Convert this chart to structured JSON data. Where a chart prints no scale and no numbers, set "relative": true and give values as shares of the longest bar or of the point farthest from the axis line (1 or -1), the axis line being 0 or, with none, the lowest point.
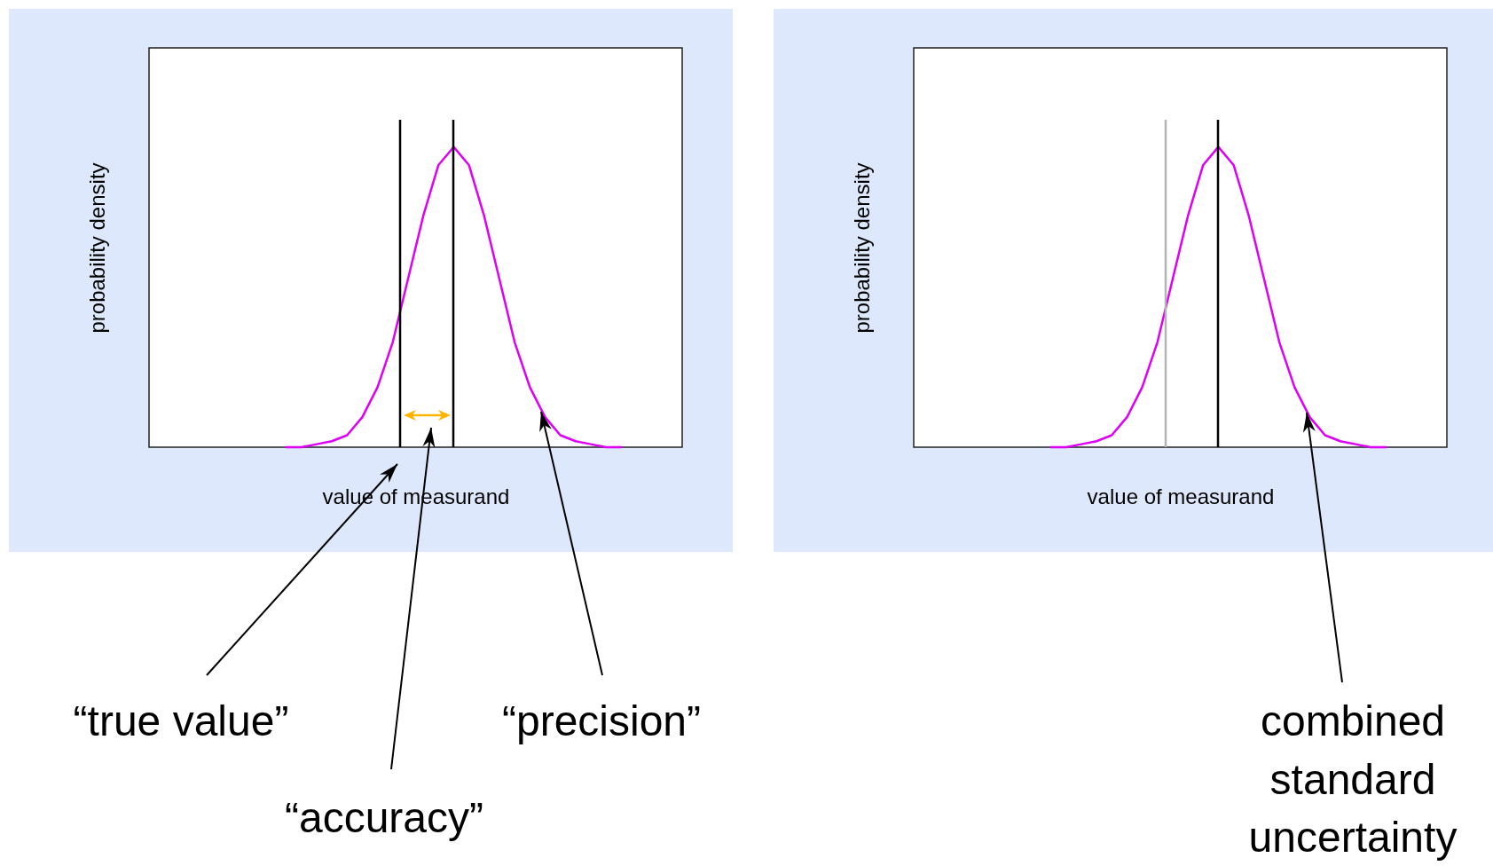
{
  "chart_data": [
    {
      "type": "line",
      "relative": true,
      "xlabel": "value of measurand",
      "ylabel": "probability density",
      "categories": [
        null,
        null,
        null,
        null,
        null,
        null,
        null,
        null,
        null,
        null,
        null,
        null,
        null,
        null,
        null,
        null,
        null,
        null,
        null,
        null,
        null,
        null,
        null,
        null,
        null,
        null,
        null,
        null,
        null,
        null,
        null,
        null,
        null,
        null,
        null,
        null
      ],
      "series": [
        {
          "color": "#dd00f5",
          "values": [
            null,
            null,
            null,
            null,
            null,
            null,
            null,
            null,
            null,
            0,
            0,
            0.01,
            0.02,
            0.04,
            0.1,
            0.2,
            0.35,
            0.56,
            0.77,
            0.94,
            1,
            0.94,
            0.77,
            0.56,
            0.35,
            0.2,
            0.1,
            0.04,
            0.02,
            0.01,
            0,
            0,
            null,
            null,
            null,
            null
          ]
        }
      ],
      "annotations": [
        "“true value”",
        "“accuracy”",
        "“precision”"
      ]
    },
    {
      "type": "line",
      "relative": true,
      "xlabel": "value of measurand",
      "ylabel": "probability density",
      "categories": [
        null,
        null,
        null,
        null,
        null,
        null,
        null,
        null,
        null,
        null,
        null,
        null,
        null,
        null,
        null,
        null,
        null,
        null,
        null,
        null,
        null,
        null,
        null,
        null,
        null,
        null,
        null,
        null,
        null,
        null,
        null,
        null,
        null,
        null,
        null,
        null
      ],
      "series": [
        {
          "color": "#dd00f5",
          "values": [
            null,
            null,
            null,
            null,
            null,
            null,
            null,
            null,
            null,
            0,
            0,
            0.01,
            0.02,
            0.04,
            0.1,
            0.2,
            0.35,
            0.56,
            0.77,
            0.94,
            1,
            0.94,
            0.77,
            0.56,
            0.35,
            0.2,
            0.1,
            0.04,
            0.02,
            0.01,
            0,
            0,
            null,
            null,
            null,
            null
          ]
        }
      ],
      "annotations": [
        "combined standard uncertainty"
      ]
    }
  ]
}
